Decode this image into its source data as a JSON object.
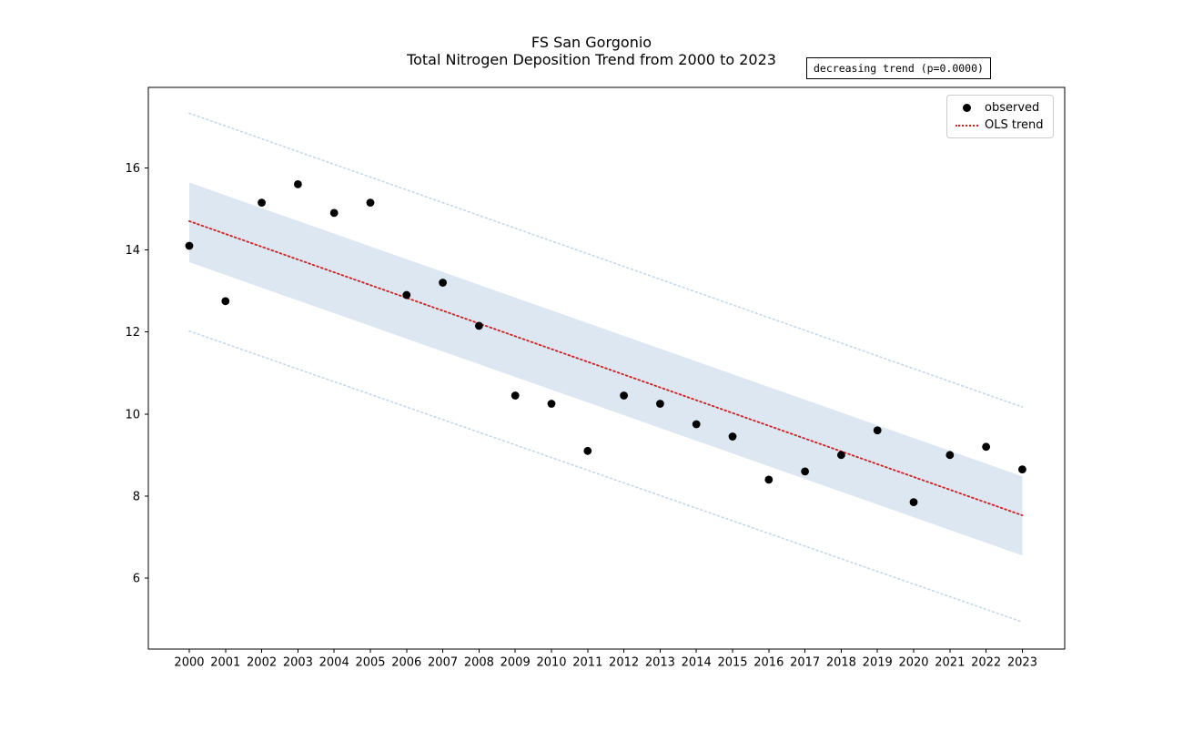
{
  "figure": {
    "title_line1": "FS San Gorgonio",
    "title_line2": "Total Nitrogen Deposition Trend from 2000 to 2023",
    "annotation_text": "decreasing trend (p=0.0000)"
  },
  "legend": {
    "items": [
      {
        "label": "observed",
        "marker": "dot"
      },
      {
        "label": "OLS trend",
        "marker": "dotted-line"
      }
    ]
  },
  "chart_data": {
    "type": "scatter",
    "title": "FS San Gorgonio — Total Nitrogen Deposition Trend from 2000 to 2023",
    "xlabel": "",
    "ylabel": "",
    "x": [
      2000,
      2001,
      2002,
      2003,
      2004,
      2005,
      2006,
      2007,
      2008,
      2009,
      2010,
      2011,
      2012,
      2013,
      2014,
      2015,
      2016,
      2017,
      2018,
      2019,
      2020,
      2021,
      2022,
      2023
    ],
    "series": [
      {
        "name": "observed",
        "type": "scatter",
        "color": "#000000",
        "values": [
          14.1,
          12.75,
          15.15,
          15.6,
          14.9,
          15.15,
          12.9,
          13.2,
          12.15,
          10.45,
          10.25,
          9.1,
          10.45,
          10.25,
          9.75,
          9.45,
          8.4,
          8.6,
          9.0,
          9.6,
          7.85,
          9.0,
          9.2,
          8.65
        ]
      },
      {
        "name": "OLS trend",
        "type": "dotted-line",
        "color": "#cc2222",
        "x": [
          2000,
          2023
        ],
        "values": [
          14.7,
          7.53
        ]
      }
    ],
    "confidence_band": {
      "x": [
        2000,
        2023
      ],
      "upper": [
        15.64,
        8.48
      ],
      "lower": [
        13.7,
        6.55
      ],
      "color": "#dce7f2"
    },
    "prediction_interval": {
      "x": [
        2000,
        2023
      ],
      "upper": [
        17.33,
        10.17
      ],
      "lower": [
        12.02,
        4.93
      ],
      "color": "#c3d8ea",
      "style": "dotted"
    },
    "annotation": "decreasing trend (p=0.0000)",
    "xticks": [
      2000,
      2001,
      2002,
      2003,
      2004,
      2005,
      2006,
      2007,
      2008,
      2009,
      2010,
      2011,
      2012,
      2013,
      2014,
      2015,
      2016,
      2017,
      2018,
      2019,
      2020,
      2021,
      2022,
      2023
    ],
    "yticks": [
      6,
      8,
      10,
      12,
      14,
      16
    ],
    "xlim": [
      1998.87,
      2024.17
    ],
    "ylim": [
      4.27,
      17.96
    ],
    "grid": false,
    "legend_position": "upper right",
    "axis_color": "#000000",
    "marker_radius": 4.4
  }
}
